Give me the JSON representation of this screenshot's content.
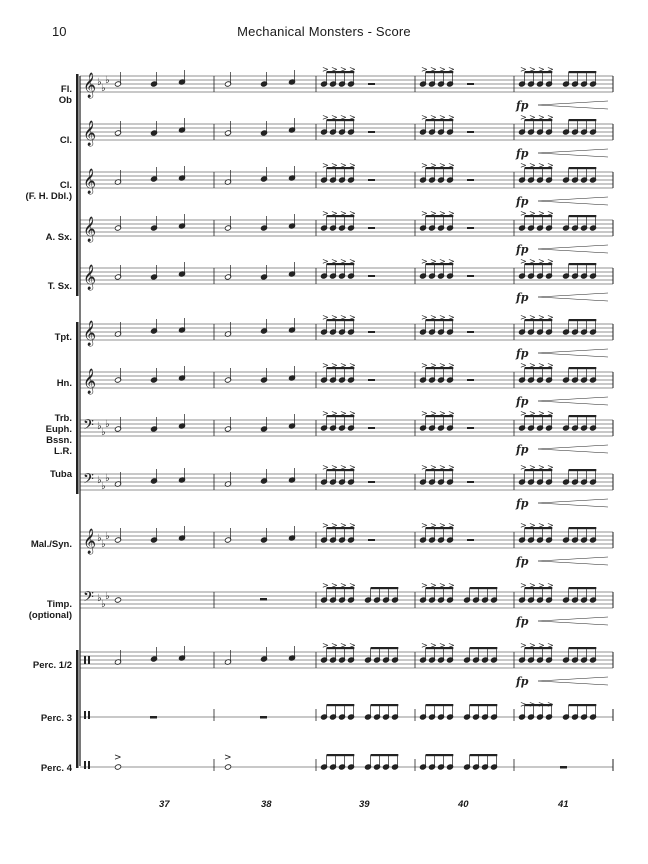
{
  "header": {
    "page_number": "10",
    "title": "Mechanical Monsters - Score"
  },
  "instruments": [
    "Fl.\nOb",
    "Cl.",
    "Cl.\n(F. H. Dbl.)",
    "A. Sx.",
    "T. Sx.",
    "Tpt.",
    "Hn.",
    "Trb.\nEuph.\nBssn.\nL.R.",
    "Tuba",
    "Mal./Syn.",
    "Timp.\n(optional)",
    "Perc. 1/2",
    "Perc. 3",
    "Perc. 4"
  ],
  "measure_numbers": [
    "37",
    "38",
    "39",
    "40",
    "41"
  ],
  "dynamic_marking": "fp"
}
